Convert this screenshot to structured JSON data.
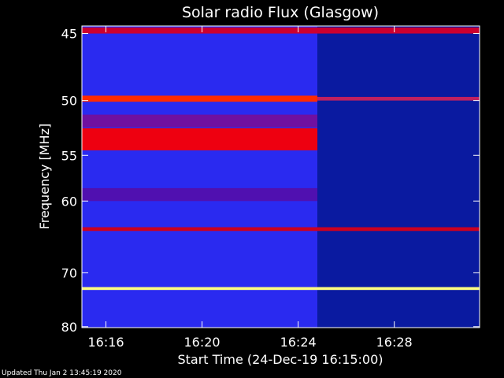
{
  "chart_data": {
    "type": "heatmap",
    "title": "Solar radio Flux (Glasgow)",
    "xlabel": "Start Time (24-Dec-19 16:15:00)",
    "ylabel": "Frequency [MHz]",
    "x_range_minutes": [
      15.0,
      31.55
    ],
    "y_range_mhz": [
      44.5,
      80.2
    ],
    "x_ticks": [
      {
        "label": "16:16",
        "minute": 16
      },
      {
        "label": "16:20",
        "minute": 20
      },
      {
        "label": "16:24",
        "minute": 24
      },
      {
        "label": "16:28",
        "minute": 28
      }
    ],
    "y_ticks": [
      {
        "label": "45",
        "mhz": 45
      },
      {
        "label": "50",
        "mhz": 50
      },
      {
        "label": "55",
        "mhz": 55
      },
      {
        "label": "60",
        "mhz": 60
      },
      {
        "label": "70",
        "mhz": 70
      },
      {
        "label": "80",
        "mhz": 80
      }
    ],
    "colormap": [
      "#000040",
      "#0000ff",
      "#8000c0",
      "#ff0000",
      "#ffff00",
      "#ffffff"
    ],
    "data_gap_at_minute": 24.8,
    "intensity_before_gap": "#2a2af0",
    "intensity_after_gap": "#0a1aa0",
    "bands_mhz": [
      {
        "lo": 44.6,
        "hi": 45.0,
        "color": "#cc0030",
        "segment": "both"
      },
      {
        "lo": 49.6,
        "hi": 50.1,
        "color": "#ff2a00",
        "segment": "before"
      },
      {
        "lo": 49.7,
        "hi": 50.0,
        "color": "#c02060",
        "segment": "after"
      },
      {
        "lo": 51.2,
        "hi": 52.3,
        "color": "#7010a0",
        "segment": "before"
      },
      {
        "lo": 52.4,
        "hi": 54.5,
        "color": "#ee0010",
        "segment": "before"
      },
      {
        "lo": 58.5,
        "hi": 60.0,
        "color": "#5010b0",
        "segment": "before"
      },
      {
        "lo": 63.3,
        "hi": 63.8,
        "color": "#cc0020",
        "segment": "both"
      },
      {
        "lo": 72.4,
        "hi": 72.9,
        "color": "#ffff80",
        "segment": "both"
      }
    ]
  },
  "footer": {
    "updated": "Updated Thu Jan  2 13:45:19 2020"
  },
  "colors": {
    "background": "#000000",
    "axes": "#ffffff"
  }
}
